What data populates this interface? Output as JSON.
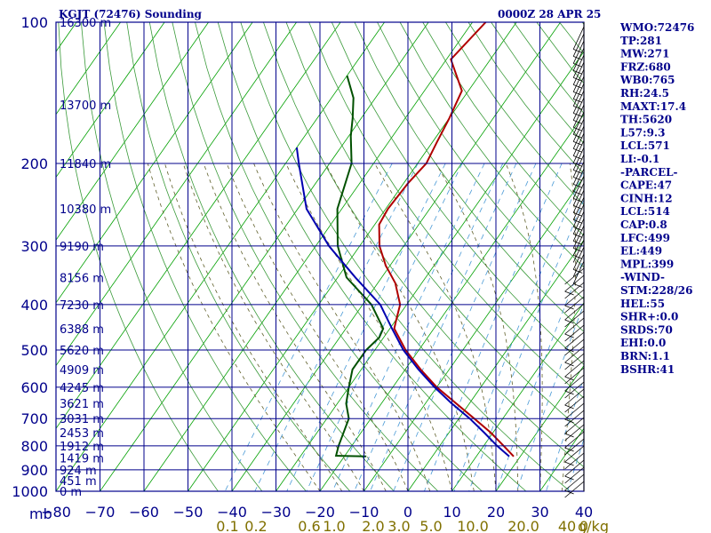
{
  "title_left": "KGJT (72476) Sounding",
  "title_right": "0000Z 28 APR 25",
  "axis_corner_label": "mb",
  "wline_unit": "g/kg",
  "chart_data": {
    "type": "line",
    "title": "KGJT (72476) Sounding",
    "x_unit_label": "",
    "xlim": [
      -80,
      40
    ],
    "pressure_ticks": [
      "100",
      "200",
      "300",
      "400",
      "500",
      "600",
      "700",
      "800",
      "900",
      "1000"
    ],
    "temperature_ticks": [
      "−80",
      "−70",
      "−60",
      "−50",
      "−40",
      "−30",
      "−20",
      "−10",
      "0",
      "10",
      "20",
      "30",
      "40"
    ],
    "mixing_ratio_labels": [
      "0.1",
      "0.2",
      "0.6",
      "1.0",
      "2.0",
      "3.0",
      "5.0",
      "10.0",
      "20.0",
      "40",
      "0"
    ],
    "height_labels": [
      {
        "p": 100,
        "label": "16300 m"
      },
      {
        "p": 150,
        "label": "13700 m"
      },
      {
        "p": 200,
        "label": "11840 m"
      },
      {
        "p": 250,
        "label": "10380 m"
      },
      {
        "p": 300,
        "label": "9190 m"
      },
      {
        "p": 350,
        "label": "8156 m"
      },
      {
        "p": 400,
        "label": "7230 m"
      },
      {
        "p": 450,
        "label": "6388 m"
      },
      {
        "p": 500,
        "label": "5620 m"
      },
      {
        "p": 550,
        "label": "4909 m"
      },
      {
        "p": 600,
        "label": "4245 m"
      },
      {
        "p": 650,
        "label": "3621 m"
      },
      {
        "p": 700,
        "label": "3031 m"
      },
      {
        "p": 750,
        "label": "2453 m"
      },
      {
        "p": 800,
        "label": "1912 m"
      },
      {
        "p": 850,
        "label": "1419 m"
      },
      {
        "p": 900,
        "label": "924 m"
      },
      {
        "p": 950,
        "label": "451 m"
      },
      {
        "p": 1000,
        "label": "0 m"
      }
    ],
    "series": [
      {
        "key": "temperature",
        "color": "#b00000",
        "points": [
          [
            100,
            -57
          ],
          [
            120,
            -59
          ],
          [
            140,
            -51.5
          ],
          [
            160,
            -50
          ],
          [
            180,
            -49
          ],
          [
            200,
            -48
          ],
          [
            220,
            -49
          ],
          [
            250,
            -49.5
          ],
          [
            270,
            -49
          ],
          [
            300,
            -45.5
          ],
          [
            330,
            -41
          ],
          [
            360,
            -36
          ],
          [
            400,
            -31.5
          ],
          [
            430,
            -30
          ],
          [
            450,
            -29
          ],
          [
            500,
            -23
          ],
          [
            550,
            -16.5
          ],
          [
            600,
            -10
          ],
          [
            650,
            -3
          ],
          [
            700,
            3.5
          ],
          [
            750,
            9.5
          ],
          [
            800,
            14.5
          ],
          [
            843,
            18.5
          ]
        ]
      },
      {
        "key": "dewpoint",
        "color": "#005000",
        "points": [
          [
            130,
            -80
          ],
          [
            145,
            -75
          ],
          [
            160,
            -72
          ],
          [
            175,
            -69.5
          ],
          [
            200,
            -65
          ],
          [
            250,
            -61
          ],
          [
            300,
            -55
          ],
          [
            350,
            -48
          ],
          [
            400,
            -38
          ],
          [
            450,
            -31.5
          ],
          [
            470,
            -31
          ],
          [
            500,
            -32
          ],
          [
            550,
            -32
          ],
          [
            600,
            -30
          ],
          [
            650,
            -28
          ],
          [
            700,
            -25
          ],
          [
            800,
            -23
          ],
          [
            840,
            -22
          ],
          [
            843,
            -15
          ]
        ]
      },
      {
        "key": "parcel",
        "color": "#0000b0",
        "points": [
          [
            185,
            -80
          ],
          [
            200,
            -77
          ],
          [
            250,
            -68
          ],
          [
            300,
            -57
          ],
          [
            350,
            -46
          ],
          [
            400,
            -36
          ],
          [
            450,
            -29.5
          ],
          [
            500,
            -23.5
          ],
          [
            550,
            -17
          ],
          [
            600,
            -10.5
          ],
          [
            650,
            -4
          ],
          [
            700,
            2.5
          ],
          [
            750,
            8
          ],
          [
            800,
            13
          ],
          [
            843,
            17.5
          ]
        ]
      }
    ],
    "grid": true,
    "legend": "none"
  },
  "indices": [
    "WMO:72476",
    "TP:281",
    "MW:271",
    "FRZ:680",
    "WB0:765",
    "RH:24.5",
    "MAXT:17.4",
    "TH:5620",
    "L57:9.3",
    "LCL:571",
    "LI:-0.1",
    "-PARCEL-",
    "CAPE:47",
    "CINH:12",
    "LCL:514",
    "CAP:0.8",
    "LFC:499",
    "EL:449",
    "MPL:399",
    "-WIND-",
    "STM:228/26",
    "HEL:55",
    "SHR+:0.0",
    "SRDS:70",
    "EHI:0.0",
    "BRN:1.1",
    "BSHR:41"
  ],
  "colors": {
    "frame": "#00008b",
    "dry_adiabat": "#00a000",
    "moist_adiabat": "#5f5f2a",
    "mixing_ratio": "#4a9ad6",
    "label_text": "#00008b",
    "mixing_label": "#807000"
  }
}
